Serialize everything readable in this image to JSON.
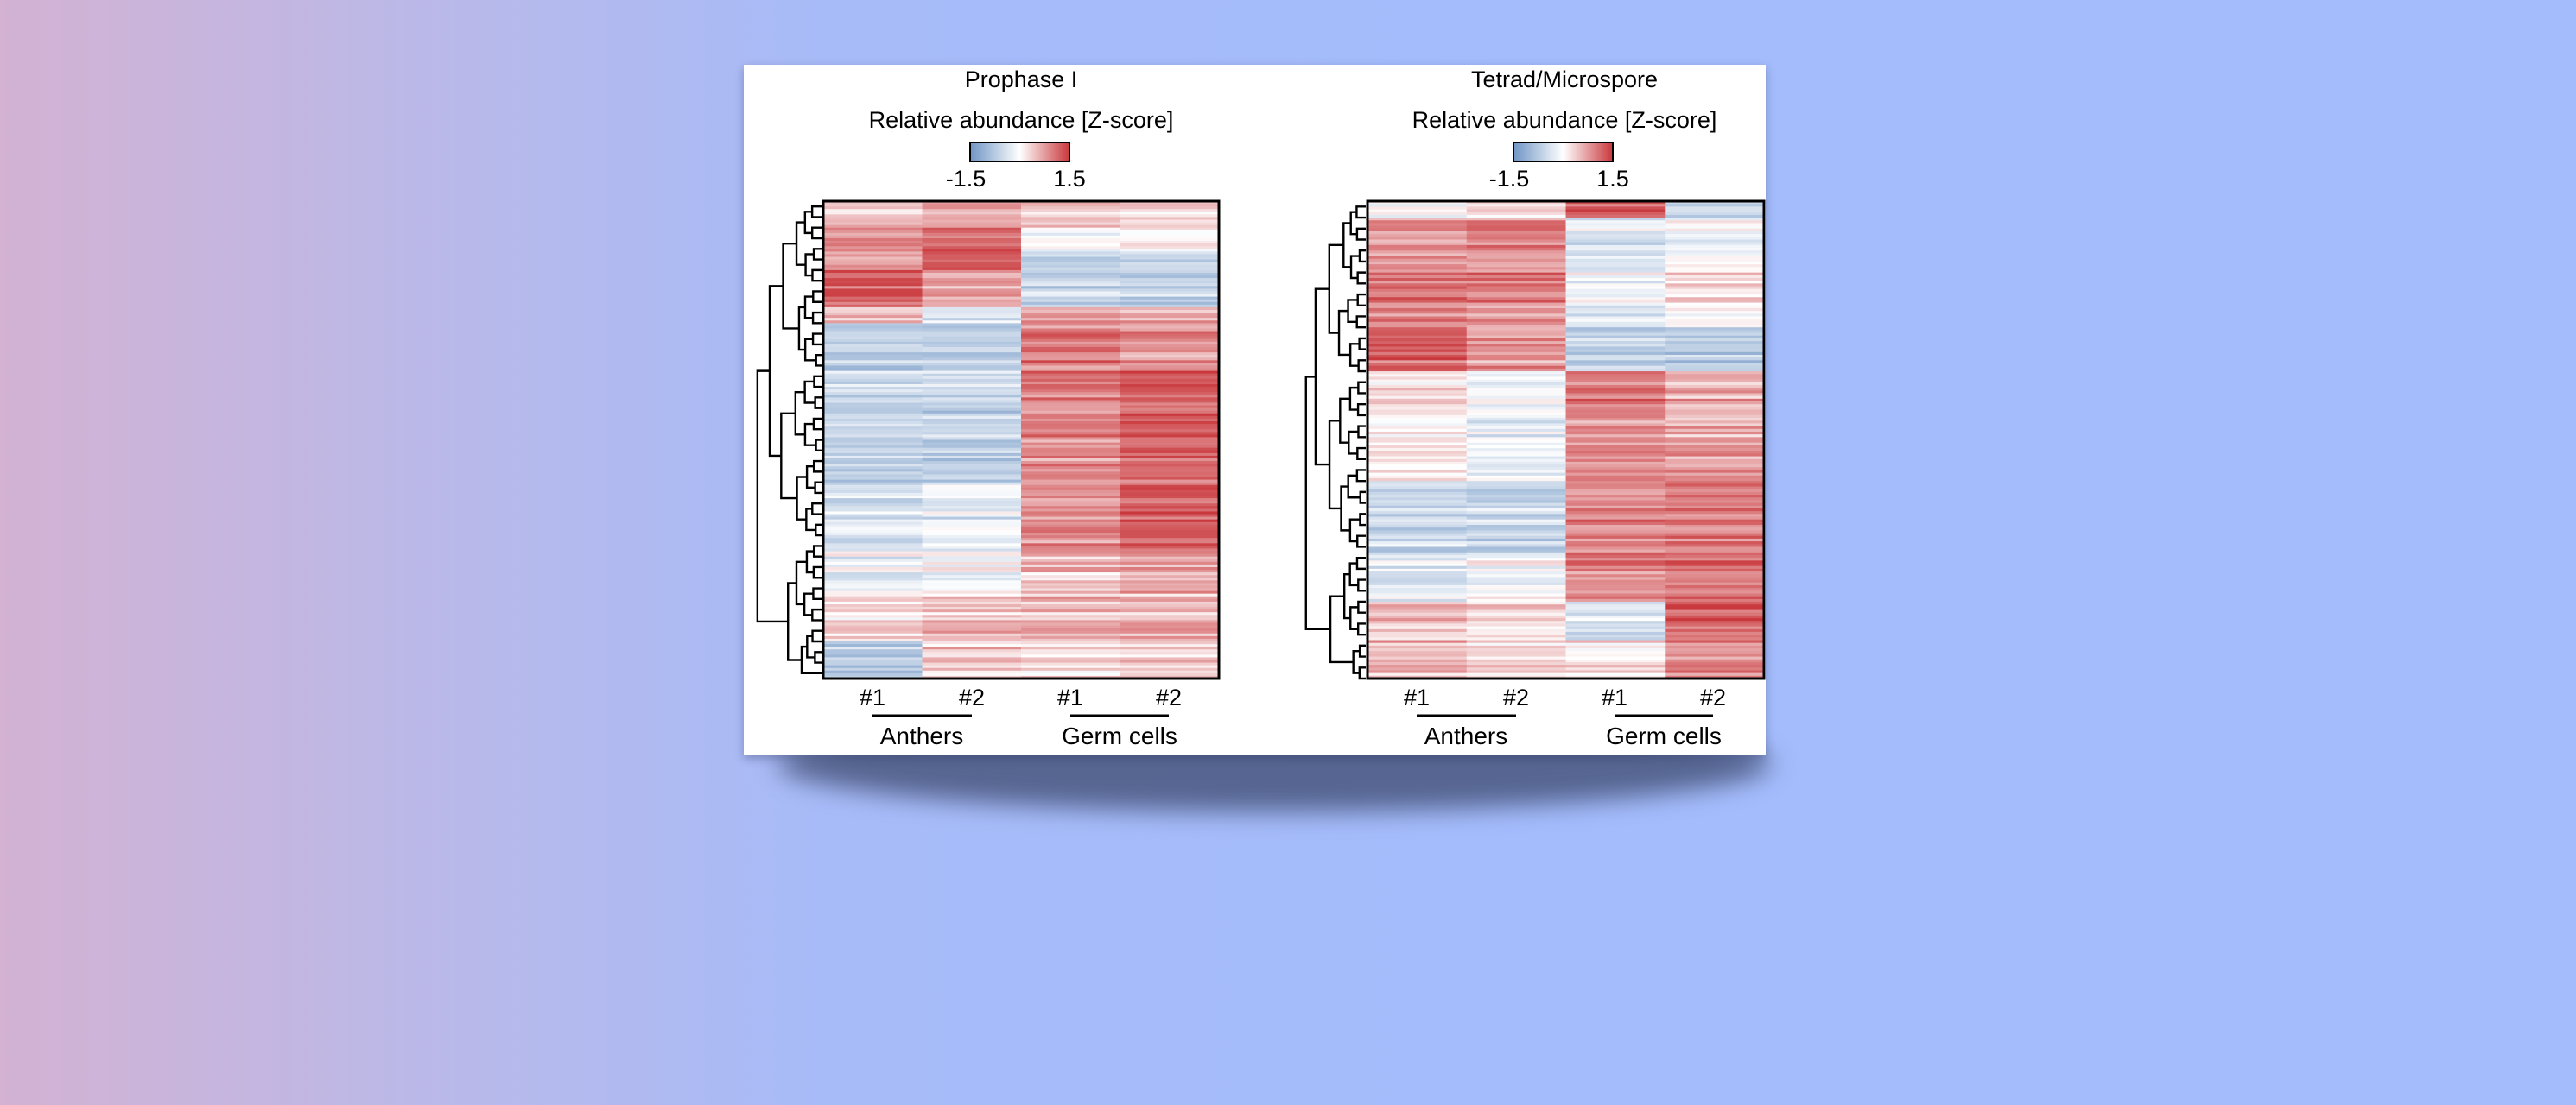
{
  "colors": {
    "low": "#6f95c4",
    "mid": "#ffffff",
    "high": "#c9383c",
    "border": "#000000"
  },
  "chart_data": [
    {
      "type": "heatmap",
      "title": "Prophase I",
      "legend_title": "Relative abundance [Z-score]",
      "color_scale": {
        "min": -1.5,
        "max": 1.5,
        "min_label": "-1.5",
        "max_label": "1.5"
      },
      "columns": [
        "#1",
        "#2",
        "#1",
        "#2"
      ],
      "groups": [
        {
          "label": "Anthers",
          "columns": [
            0,
            1
          ]
        },
        {
          "label": "Germ cells",
          "columns": [
            2,
            3
          ]
        }
      ],
      "row_clusters": [
        {
          "rows": 10,
          "values": [
            0.4,
            0.6,
            0.4,
            0.3
          ]
        },
        {
          "rows": 8,
          "values": [
            0.9,
            1.1,
            0.0,
            0.2
          ]
        },
        {
          "rows": 8,
          "values": [
            0.7,
            1.3,
            -0.6,
            -0.5
          ]
        },
        {
          "rows": 14,
          "values": [
            1.2,
            0.7,
            -0.6,
            -0.7
          ]
        },
        {
          "rows": 6,
          "values": [
            0.3,
            -0.4,
            0.6,
            0.5
          ]
        },
        {
          "rows": 16,
          "values": [
            -0.7,
            -0.7,
            1.0,
            0.8
          ]
        },
        {
          "rows": 44,
          "values": [
            -0.6,
            -0.6,
            0.9,
            1.2
          ]
        },
        {
          "rows": 26,
          "values": [
            -0.5,
            -0.3,
            0.8,
            1.1
          ]
        },
        {
          "rows": 16,
          "values": [
            -0.2,
            -0.1,
            0.5,
            0.7
          ]
        },
        {
          "rows": 18,
          "values": [
            0.3,
            0.5,
            0.6,
            0.6
          ]
        },
        {
          "rows": 14,
          "values": [
            -0.7,
            0.4,
            0.3,
            0.4
          ]
        }
      ]
    },
    {
      "type": "heatmap",
      "title": "Tetrad/Microspore",
      "legend_title": "Relative abundance [Z-score]",
      "color_scale": {
        "min": -1.5,
        "max": 1.5,
        "min_label": "-1.5",
        "max_label": "1.5"
      },
      "columns": [
        "#1",
        "#2",
        "#1",
        "#2"
      ],
      "groups": [
        {
          "label": "Anthers",
          "columns": [
            0,
            1
          ]
        },
        {
          "label": "Germ cells",
          "columns": [
            2,
            3
          ]
        }
      ],
      "row_clusters": [
        {
          "rows": 6,
          "values": [
            0.1,
            0.3,
            1.3,
            -0.5
          ]
        },
        {
          "rows": 14,
          "values": [
            0.8,
            1.0,
            -0.3,
            -0.1
          ]
        },
        {
          "rows": 26,
          "values": [
            1.0,
            0.9,
            -0.2,
            0.2
          ]
        },
        {
          "rows": 16,
          "values": [
            1.2,
            0.8,
            -0.7,
            -0.7
          ]
        },
        {
          "rows": 18,
          "values": [
            0.2,
            -0.1,
            0.9,
            0.6
          ]
        },
        {
          "rows": 22,
          "values": [
            0.1,
            -0.2,
            0.8,
            0.7
          ]
        },
        {
          "rows": 28,
          "values": [
            -0.5,
            -0.6,
            0.9,
            1.0
          ]
        },
        {
          "rows": 16,
          "values": [
            -0.3,
            0.0,
            1.0,
            1.1
          ]
        },
        {
          "rows": 14,
          "values": [
            0.5,
            0.3,
            -0.4,
            1.2
          ]
        },
        {
          "rows": 14,
          "values": [
            0.6,
            0.4,
            0.2,
            0.9
          ]
        }
      ]
    }
  ]
}
